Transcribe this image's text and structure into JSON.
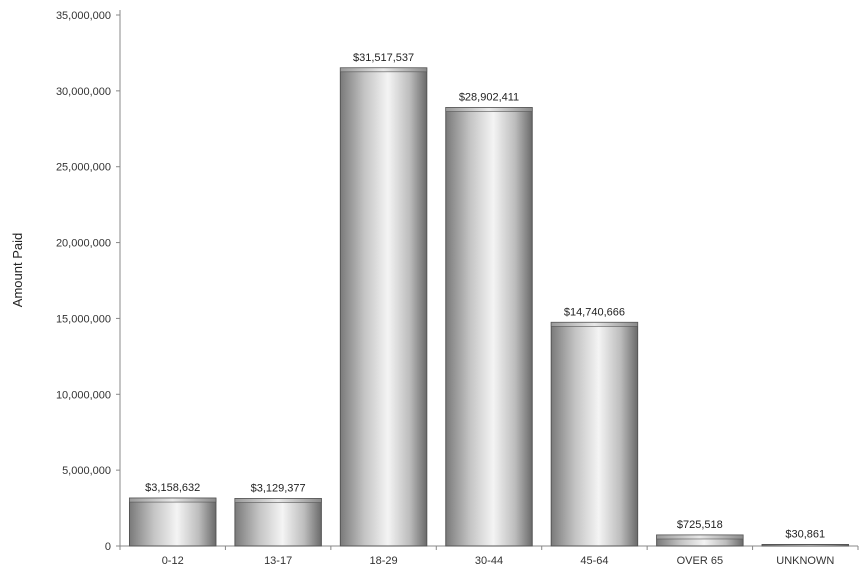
{
  "chart_data": {
    "type": "bar",
    "ylabel": "Amount Paid",
    "xlabel": "",
    "ylim": [
      0,
      35000000
    ],
    "yticks": [
      0,
      5000000,
      10000000,
      15000000,
      20000000,
      25000000,
      30000000,
      35000000
    ],
    "ytick_labels": [
      "0",
      "5,000,000",
      "10,000,000",
      "15,000,000",
      "20,000,000",
      "25,000,000",
      "30,000,000",
      "35,000,000"
    ],
    "categories": [
      "0-12",
      "13-17",
      "18-29",
      "30-44",
      "45-64",
      "OVER 65",
      "UNKNOWN"
    ],
    "values": [
      3158632,
      3129377,
      31517537,
      28902411,
      14740666,
      725518,
      30861
    ],
    "data_labels": [
      "$3,158,632",
      "$3,129,377",
      "$31,517,537",
      "$28,902,411",
      "$14,740,666",
      "$725,518",
      "$30,861"
    ],
    "grid": false,
    "bar_color": "#a8a8a8"
  }
}
